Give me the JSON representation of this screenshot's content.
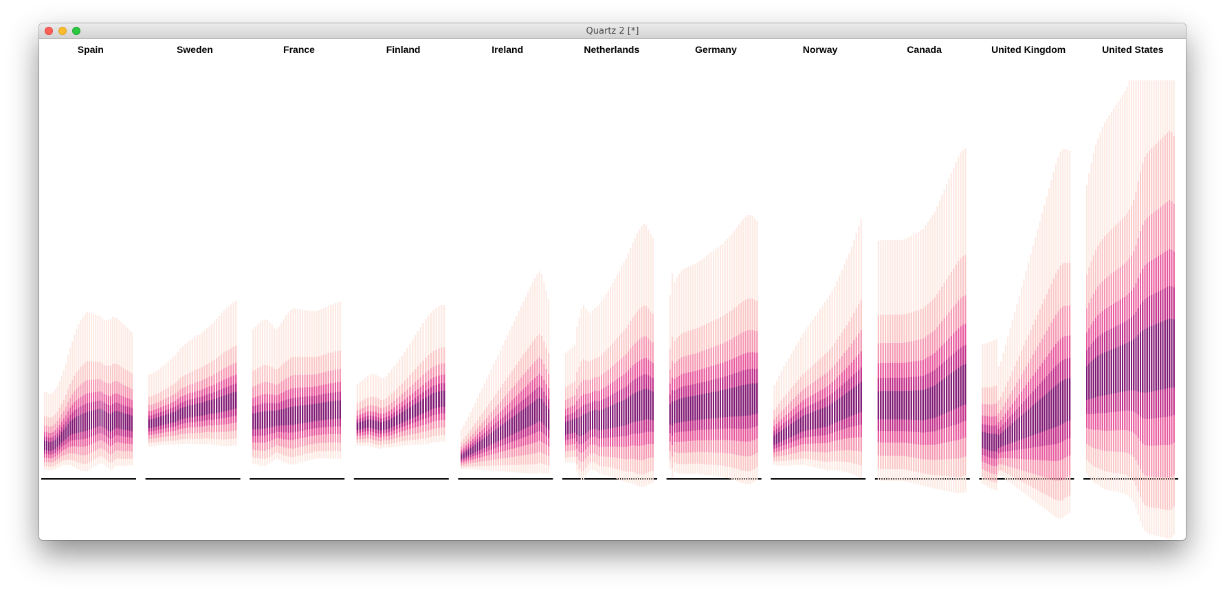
{
  "window": {
    "title": "Quartz 2 [*]"
  },
  "chart_data": {
    "type": "bar",
    "description_free": true,
    "title": "",
    "xlabel": "",
    "ylabel": "",
    "panels": [
      {
        "name": "Spain",
        "n": 42,
        "median": [
          30,
          30,
          29,
          29,
          30,
          32,
          35,
          38,
          42,
          45,
          48,
          52,
          55,
          57,
          59,
          60,
          61,
          62,
          63,
          64,
          65,
          66,
          67,
          68,
          69,
          70,
          71,
          70,
          68,
          66,
          64,
          63,
          65,
          67,
          68,
          67,
          66,
          65,
          64,
          64,
          63,
          62
        ],
        "spread": [
          78,
          78,
          77,
          77,
          78,
          80,
          82,
          86,
          90,
          95,
          102,
          110,
          118,
          126,
          133,
          140,
          146,
          151,
          155,
          158,
          160,
          158,
          156,
          154,
          152,
          150,
          148,
          146,
          145,
          147,
          150,
          152,
          153,
          150,
          148,
          146,
          144,
          142,
          140,
          138,
          136,
          134
        ]
      },
      {
        "name": "Sweden",
        "n": 37,
        "median": [
          62,
          62,
          63,
          64,
          65,
          66,
          67,
          68,
          69,
          70,
          71,
          72,
          74,
          76,
          77,
          78,
          79,
          80,
          80,
          81,
          82,
          82,
          83,
          84,
          85,
          86,
          86,
          87,
          88,
          89,
          90,
          91,
          92,
          93,
          94,
          95,
          96
        ],
        "spread": [
          72,
          73,
          74,
          75,
          76,
          78,
          80,
          82,
          84,
          86,
          88,
          90,
          93,
          96,
          98,
          100,
          102,
          104,
          106,
          108,
          109,
          110,
          112,
          114,
          116,
          118,
          121,
          124,
          127,
          130,
          133,
          136,
          138,
          140,
          142,
          144,
          145
        ]
      },
      {
        "name": "France",
        "n": 38,
        "median": [
          65,
          65,
          66,
          66,
          67,
          67,
          68,
          68,
          69,
          69,
          70,
          70,
          71,
          71,
          72,
          72,
          73,
          73,
          74,
          74,
          75,
          75,
          76,
          76,
          77,
          77,
          78,
          78,
          79,
          79,
          80,
          80,
          81,
          81,
          81,
          82,
          82,
          82
        ],
        "spread": [
          135,
          138,
          141,
          144,
          146,
          147,
          145,
          142,
          138,
          133,
          130,
          133,
          138,
          144,
          148,
          152,
          155,
          157,
          156,
          155,
          154,
          153,
          152,
          151,
          150,
          149,
          148,
          148,
          149,
          150,
          151,
          152,
          153,
          154,
          155,
          156,
          157,
          158
        ]
      },
      {
        "name": "Finland",
        "n": 34,
        "median": [
          58,
          59,
          60,
          61,
          62,
          62,
          61,
          60,
          59,
          58,
          59,
          60,
          61,
          63,
          65,
          67,
          69,
          71,
          73,
          75,
          77,
          79,
          81,
          83,
          85,
          87,
          89,
          91,
          93,
          95,
          96,
          97,
          98,
          98
        ],
        "spread": [
          62,
          64,
          66,
          68,
          70,
          72,
          73,
          74,
          73,
          71,
          70,
          72,
          75,
          78,
          81,
          84,
          87,
          90,
          94,
          98,
          102,
          106,
          110,
          114,
          118,
          122,
          126,
          129,
          131,
          133,
          135,
          136,
          137,
          137
        ]
      },
      {
        "name": "Ireland",
        "n": 39,
        "median": [
          14,
          16,
          18,
          20,
          22,
          24,
          26,
          28,
          30,
          32,
          34,
          36,
          38,
          40,
          42,
          44,
          46,
          48,
          50,
          52,
          54,
          56,
          58,
          60,
          62,
          64,
          66,
          68,
          70,
          72,
          74,
          76,
          78,
          80,
          82,
          80,
          76,
          72,
          68
        ],
        "spread": [
          40,
          44,
          48,
          52,
          57,
          62,
          67,
          72,
          77,
          82,
          87,
          92,
          97,
          102,
          107,
          112,
          117,
          122,
          127,
          132,
          137,
          142,
          147,
          152,
          157,
          162,
          167,
          172,
          177,
          182,
          187,
          192,
          196,
          200,
          202,
          200,
          192,
          184,
          176
        ]
      },
      {
        "name": "Netherlands",
        "n": 40,
        "median": [
          55,
          56,
          57,
          58,
          59,
          58,
          57,
          58,
          60,
          62,
          64,
          66,
          67,
          68,
          67,
          66,
          67,
          68,
          69,
          70,
          71,
          72,
          73,
          74,
          75,
          76,
          77,
          78,
          80,
          82,
          84,
          85,
          86,
          87,
          88,
          89,
          90,
          89,
          88,
          87
        ],
        "spread": [
          110,
          112,
          114,
          116,
          118,
          145,
          160,
          172,
          175,
          168,
          162,
          158,
          160,
          163,
          166,
          170,
          174,
          178,
          182,
          186,
          190,
          195,
          200,
          205,
          210,
          215,
          220,
          225,
          230,
          236,
          242,
          248,
          254,
          258,
          262,
          264,
          262,
          256,
          250,
          246
        ]
      },
      {
        "name": "Germany",
        "n": 39,
        "median": [
          75,
          76,
          78,
          79,
          80,
          81,
          82,
          82,
          83,
          83,
          84,
          84,
          85,
          85,
          86,
          86,
          87,
          87,
          88,
          88,
          89,
          89,
          90,
          90,
          91,
          91,
          92,
          92,
          93,
          93,
          94,
          94,
          95,
          95,
          96,
          96,
          97,
          97,
          98
        ],
        "spread": [
          175,
          205,
          190,
          196,
          200,
          204,
          206,
          207,
          208,
          209,
          210,
          211,
          212,
          214,
          216,
          218,
          220,
          222,
          224,
          226,
          228,
          230,
          232,
          234,
          237,
          240,
          243,
          246,
          250,
          254,
          258,
          262,
          265,
          268,
          270,
          270,
          268,
          264,
          260
        ]
      },
      {
        "name": "Norway",
        "n": 37,
        "median": [
          38,
          40,
          42,
          44,
          46,
          48,
          50,
          52,
          54,
          56,
          58,
          60,
          62,
          63,
          64,
          65,
          66,
          67,
          68,
          69,
          70,
          71,
          72,
          74,
          76,
          78,
          80,
          82,
          84,
          86,
          88,
          90,
          92,
          94,
          96,
          98,
          100
        ],
        "spread": [
          80,
          85,
          90,
          95,
          100,
          104,
          108,
          112,
          116,
          120,
          124,
          128,
          132,
          136,
          140,
          144,
          148,
          152,
          156,
          160,
          164,
          168,
          172,
          176,
          180,
          185,
          190,
          196,
          202,
          208,
          214,
          220,
          228,
          236,
          244,
          252,
          260
        ]
      },
      {
        "name": "Canada",
        "n": 38,
        "median": [
          88,
          88,
          88,
          88,
          88,
          88,
          88,
          88,
          88,
          88,
          88,
          88,
          88,
          88,
          88,
          88,
          88,
          88,
          88,
          88,
          89,
          90,
          91,
          92,
          93,
          95,
          97,
          99,
          101,
          103,
          105,
          107,
          109,
          111,
          113,
          115,
          117,
          118
        ],
        "spread": [
          240,
          241,
          242,
          242,
          242,
          242,
          242,
          242,
          242,
          242,
          242,
          243,
          244,
          246,
          248,
          250,
          252,
          254,
          256,
          258,
          262,
          266,
          270,
          274,
          278,
          284,
          290,
          296,
          302,
          308,
          314,
          320,
          326,
          332,
          338,
          342,
          344,
          345
        ]
      },
      {
        "name": "United Kingdom",
        "n": 39,
        "median": [
          38,
          37,
          36,
          35,
          34,
          34,
          34,
          36,
          38,
          40,
          42,
          44,
          46,
          48,
          50,
          52,
          54,
          56,
          58,
          60,
          62,
          64,
          66,
          68,
          70,
          72,
          74,
          76,
          78,
          80,
          82,
          84,
          86,
          88,
          90,
          92,
          94,
          95,
          96
        ],
        "spread": [
          140,
          142,
          144,
          146,
          148,
          150,
          152,
          110,
          115,
          125,
          135,
          145,
          155,
          165,
          175,
          185,
          195,
          205,
          215,
          225,
          235,
          245,
          255,
          265,
          275,
          285,
          295,
          305,
          315,
          325,
          335,
          345,
          355,
          362,
          368,
          370,
          368,
          366,
          364
        ]
      },
      {
        "name": "United States",
        "n": 40,
        "median": [
          120,
          122,
          124,
          126,
          128,
          130,
          131,
          132,
          133,
          134,
          135,
          136,
          137,
          138,
          139,
          140,
          141,
          142,
          143,
          144,
          145,
          146,
          147,
          148,
          149,
          150,
          151,
          152,
          153,
          154,
          155,
          156,
          157,
          158,
          159,
          160,
          161,
          162,
          162,
          162
        ],
        "spread": [
          290,
          305,
          318,
          330,
          340,
          348,
          355,
          362,
          368,
          372,
          376,
          380,
          384,
          388,
          392,
          396,
          400,
          404,
          410,
          418,
          426,
          440,
          460,
          485,
          510,
          530,
          545,
          552,
          558,
          562,
          566,
          570,
          574,
          578,
          582,
          586,
          590,
          594,
          590,
          580
        ]
      }
    ]
  }
}
